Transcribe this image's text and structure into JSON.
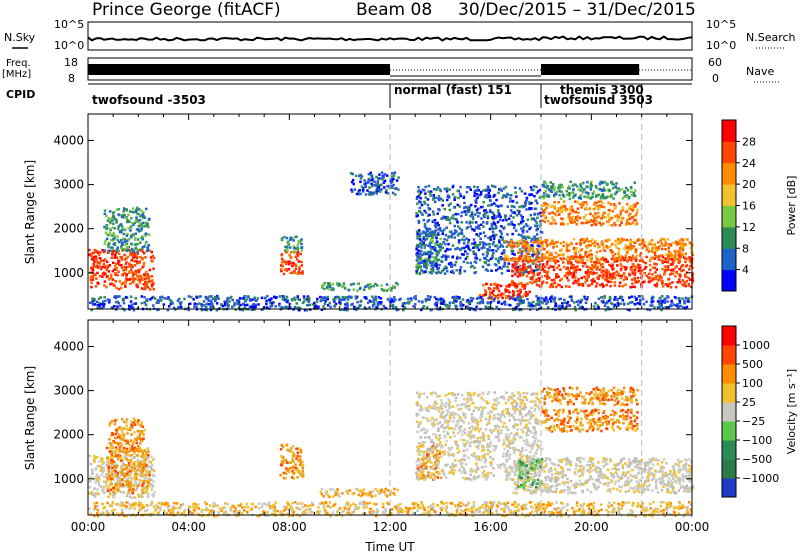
{
  "header": {
    "station": "Prince George (fitACF)",
    "beam": "Beam 08",
    "date_range": "30/Dec/2015 – 31/Dec/2015"
  },
  "top_panels": {
    "nsky_label": "N.Sky",
    "nsky_ticks": [
      "10^5",
      "10^0"
    ],
    "nsearch_label": "N.Search",
    "freq_label_1": "Freq.",
    "freq_label_2": "[MHz]",
    "freq_ticks": [
      "18",
      "8"
    ],
    "nave_ticks": [
      "60",
      "0"
    ],
    "nave_label": "Nave",
    "cpid_label": "CPID",
    "cpid_segments": [
      {
        "label": "twofsound -3503",
        "start_hour": 0
      },
      {
        "label": "normal (fast) 151",
        "start_hour": 12
      },
      {
        "label": "themis 3300",
        "start_hour": 18
      },
      {
        "label": "twofsound 3503",
        "start_hour": 18
      }
    ],
    "cpid_boundary_hours": [
      12,
      18,
      22
    ]
  },
  "chart_data": [
    {
      "type": "heatmap",
      "title": "",
      "ylabel": "Slant Range [km]",
      "ylim": [
        180,
        4600
      ],
      "yticks": [
        "1000",
        "2000",
        "3000",
        "4000"
      ],
      "xlim": [
        0,
        24
      ],
      "colorbar_label": "Power [dB]",
      "colorbar_ticks": [
        "4",
        "8",
        "12",
        "16",
        "20",
        "24",
        "28"
      ],
      "colorbar_colors": [
        "#0000ff",
        "#1e64c8",
        "#2e8b57",
        "#7ac943",
        "#f2c12e",
        "#ff8c00",
        "#ff4500",
        "#ff0000"
      ],
      "regions": [
        {
          "t": [
            0.0,
            2.6
          ],
          "r": [
            650,
            1550
          ],
          "v": "red"
        },
        {
          "t": [
            0.6,
            2.4
          ],
          "r": [
            1500,
            2500
          ],
          "v": "green"
        },
        {
          "t": [
            7.6,
            8.5
          ],
          "r": [
            1000,
            1500
          ],
          "v": "red"
        },
        {
          "t": [
            7.6,
            8.5
          ],
          "r": [
            1500,
            1850
          ],
          "v": "green"
        },
        {
          "t": [
            9.2,
            12.3
          ],
          "r": [
            620,
            800
          ],
          "v": "green"
        },
        {
          "t": [
            10.4,
            12.3
          ],
          "r": [
            2800,
            3300
          ],
          "v": "blue"
        },
        {
          "t": [
            13.0,
            14.0
          ],
          "r": [
            1000,
            2000
          ],
          "v": "green"
        },
        {
          "t": [
            13.0,
            18.0
          ],
          "r": [
            1000,
            3000
          ],
          "v": "blue"
        },
        {
          "t": [
            15.5,
            17.5
          ],
          "r": [
            420,
            800
          ],
          "v": "red"
        },
        {
          "t": [
            16.8,
            24.0
          ],
          "r": [
            700,
            1400
          ],
          "v": "red"
        },
        {
          "t": [
            16.5,
            24.0
          ],
          "r": [
            1300,
            1800
          ],
          "v": "orange"
        },
        {
          "t": [
            18.0,
            21.8
          ],
          "r": [
            2100,
            2650
          ],
          "v": "orange"
        },
        {
          "t": [
            18.0,
            21.8
          ],
          "r": [
            2700,
            3100
          ],
          "v": "green"
        },
        {
          "t": [
            0.0,
            24.0
          ],
          "r": [
            180,
            500
          ],
          "v": "blue"
        }
      ]
    },
    {
      "type": "heatmap",
      "title": "",
      "ylabel": "Slant Range [km]",
      "ylim": [
        180,
        4600
      ],
      "yticks": [
        "1000",
        "2000",
        "3000",
        "4000"
      ],
      "xlim": [
        0,
        24
      ],
      "xticks": [
        "00:00",
        "04:00",
        "08:00",
        "12:00",
        "16:00",
        "20:00",
        "00:00"
      ],
      "xlabel": "Time UT",
      "colorbar_label": "Velocity [m s⁻¹]",
      "colorbar_ticks": [
        "1000",
        "500",
        "100",
        "25",
        "−25",
        "−100",
        "−500",
        "−1000"
      ],
      "colorbar_colors": [
        "#1e3cc8",
        "#2a7a4a",
        "#2e8b57",
        "#5ac84b",
        "#c8c8c0",
        "#f2c12e",
        "#ff8c00",
        "#ff4500",
        "#ff0000"
      ],
      "regions": [
        {
          "t": [
            0.0,
            2.6
          ],
          "r": [
            600,
            1550
          ],
          "v": "gray"
        },
        {
          "t": [
            0.7,
            2.4
          ],
          "r": [
            700,
            1750
          ],
          "v": "orange"
        },
        {
          "t": [
            0.8,
            2.2
          ],
          "r": [
            1600,
            2400
          ],
          "v": "orange"
        },
        {
          "t": [
            7.6,
            8.5
          ],
          "r": [
            1000,
            1800
          ],
          "v": "orange"
        },
        {
          "t": [
            9.2,
            12.3
          ],
          "r": [
            620,
            800
          ],
          "v": "yellow"
        },
        {
          "t": [
            13.0,
            14.0
          ],
          "r": [
            1000,
            1800
          ],
          "v": "orange"
        },
        {
          "t": [
            13.0,
            18.0
          ],
          "r": [
            1000,
            3000
          ],
          "v": "gray"
        },
        {
          "t": [
            16.8,
            24.0
          ],
          "r": [
            700,
            1500
          ],
          "v": "gray"
        },
        {
          "t": [
            17.0,
            18.0
          ],
          "r": [
            800,
            1500
          ],
          "v": "green"
        },
        {
          "t": [
            18.0,
            21.8
          ],
          "r": [
            2100,
            2600
          ],
          "v": "orange"
        },
        {
          "t": [
            18.0,
            21.8
          ],
          "r": [
            2700,
            3100
          ],
          "v": "orange"
        },
        {
          "t": [
            0.0,
            24.0
          ],
          "r": [
            180,
            500
          ],
          "v": "yellow"
        }
      ]
    }
  ]
}
